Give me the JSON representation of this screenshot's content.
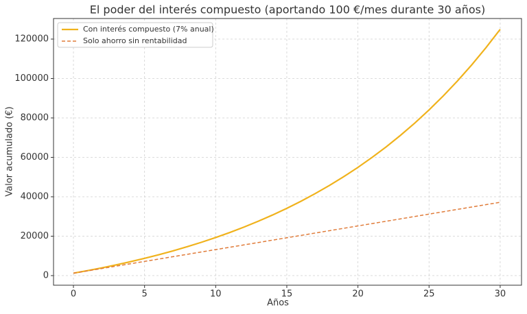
{
  "chart_data": {
    "type": "line",
    "title": "El poder del interés compuesto (aportando 100 €/mes durante 30 años)",
    "x_label": "Años",
    "y_label": "Valor acumulado (€)",
    "x": [
      0,
      1,
      2,
      3,
      4,
      5,
      6,
      7,
      8,
      9,
      10,
      11,
      12,
      13,
      14,
      15,
      16,
      17,
      18,
      19,
      20,
      21,
      22,
      23,
      24,
      25,
      26,
      27,
      28,
      29,
      30
    ],
    "series": [
      {
        "name": "Con interés compuesto (7% anual)",
        "color": "#f0b21c",
        "linestyle": "solid",
        "values": [
          1224,
          2534,
          3934,
          5435,
          7040,
          8755,
          10593,
          12558,
          14662,
          16912,
          19320,
          21896,
          24652,
          27602,
          30758,
          34136,
          37749,
          41615,
          45752,
          50180,
          54917,
          59984,
          65407,
          71210,
          77418,
          84062,
          91170,
          98775,
          106915,
          115623,
          124939
        ]
      },
      {
        "name": "Solo ahorro sin rentabilidad",
        "color": "#e07b39",
        "linestyle": "dashed",
        "values": [
          1200,
          2400,
          3600,
          4800,
          6000,
          7200,
          8400,
          9600,
          10800,
          12000,
          13200,
          14400,
          15600,
          16800,
          18000,
          19200,
          20400,
          21600,
          22800,
          24000,
          25200,
          26400,
          27600,
          28800,
          30000,
          31200,
          32400,
          33600,
          34800,
          36000,
          37200
        ]
      }
    ],
    "xlim": [
      -1.4,
      31.5
    ],
    "ylim": [
      -4870,
      130430
    ],
    "xticks": [
      0,
      5,
      10,
      15,
      20,
      25,
      30
    ],
    "yticks": [
      0,
      20000,
      40000,
      60000,
      80000,
      100000,
      120000
    ],
    "grid": true,
    "legend": "upper left"
  }
}
